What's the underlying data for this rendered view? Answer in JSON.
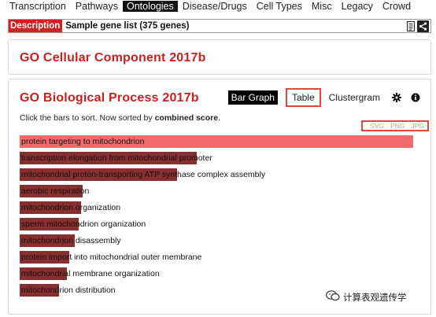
{
  "nav": {
    "items": [
      "Transcription",
      "Pathways",
      "Ontologies",
      "Disease/Drugs",
      "Cell Types",
      "Misc",
      "Legacy",
      "Crowd"
    ],
    "active": "Ontologies"
  },
  "description": {
    "label": "Description",
    "value": "Sample gene list (375 genes)"
  },
  "panels": {
    "cc": {
      "title": "GO Cellular Component 2017b"
    },
    "bp": {
      "title": "GO Biological Process 2017b",
      "tabs": {
        "bar": "Bar Graph",
        "table": "Table",
        "cluster": "Clustergram"
      },
      "sort_prefix": "Click the bars to sort. Now sorted by",
      "sort_key": "combined score",
      "sort_suffix": ".",
      "export": {
        "svg": "SVG",
        "png": "PNG",
        "jpg": "JPG"
      },
      "terms": [
        {
          "label": "protein targeting to mitochondrion",
          "score": 1.0
        },
        {
          "label": "transcription elongation from mitochondrial promoter",
          "score": 0.45
        },
        {
          "label": "mitochondrial proton-transporting ATP synthase complex assembly",
          "score": 0.4
        },
        {
          "label": "aerobic respiration",
          "score": 0.16
        },
        {
          "label": "mitochondrion organization",
          "score": 0.155
        },
        {
          "label": "sperm mitochondrion organization",
          "score": 0.15
        },
        {
          "label": "mitochondrion disassembly",
          "score": 0.14
        },
        {
          "label": "protein import into mitochondrial outer membrane",
          "score": 0.125
        },
        {
          "label": "mitochondrial membrane organization",
          "score": 0.12
        },
        {
          "label": "mitochondrion distribution",
          "score": 0.1
        }
      ]
    }
  },
  "watermark": {
    "text": "计算表观遗传学"
  },
  "colors": {
    "accent": "#c8201e",
    "bar_top": "#f06b6a",
    "bar": "#8a2f2f",
    "highlight": "#e0483f"
  }
}
